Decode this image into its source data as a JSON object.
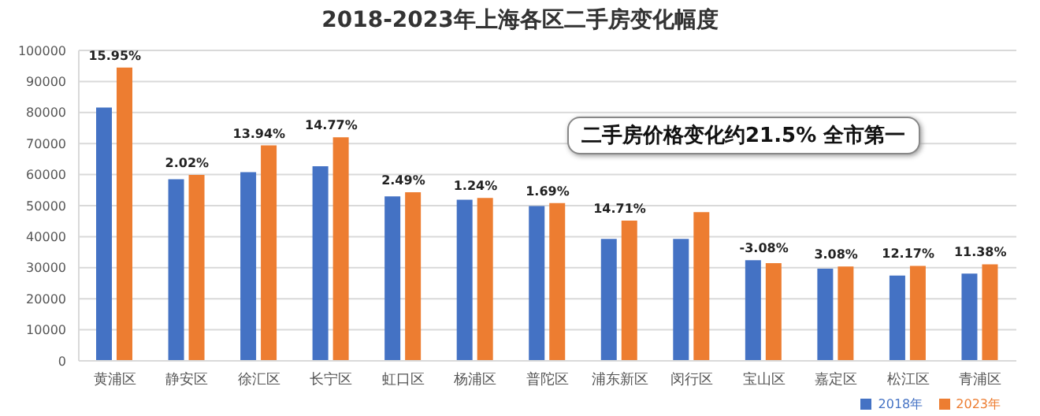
{
  "chart_data": {
    "type": "bar",
    "title": "2018-2023年上海各区二手房变化幅度",
    "categories": [
      "黄浦区",
      "静安区",
      "徐汇区",
      "长宁区",
      "虹口区",
      "杨浦区",
      "普陀区",
      "浦东新区",
      "闵行区",
      "宝山区",
      "嘉定区",
      "松江区",
      "青浦区"
    ],
    "series": [
      {
        "name": "2018年",
        "color": "#4472c4",
        "values": [
          81600,
          58500,
          60800,
          62700,
          53000,
          51900,
          49900,
          39300,
          39300,
          32400,
          29700,
          27500,
          28100
        ]
      },
      {
        "name": "2023年",
        "color": "#ed7d31",
        "values": [
          94500,
          59900,
          69400,
          72000,
          54300,
          52500,
          50800,
          45200,
          47900,
          31500,
          30400,
          30600,
          31100
        ]
      }
    ],
    "ylim": [
      0,
      100000
    ],
    "yticks": [
      0,
      10000,
      20000,
      30000,
      40000,
      50000,
      60000,
      70000,
      80000,
      90000,
      100000
    ],
    "grid": "y",
    "legend": "bottom right",
    "annotations": [
      "二手房价格变化约21.5% 全市第一",
      {
        "text": "15.95%",
        "x": "黄浦区",
        "y": 94500
      },
      {
        "text": "2.02%",
        "x": "静安区",
        "y": 59900
      },
      {
        "text": "13.94%",
        "x": "徐汇区",
        "y": 69400
      },
      {
        "text": "14.77%",
        "x": "长宁区",
        "y": 72000
      },
      {
        "text": "2.49%",
        "x": "虹口区",
        "y": 54300
      },
      {
        "text": "1.24%",
        "x": "杨浦区",
        "y": 52500
      },
      {
        "text": "1.69%",
        "x": "普陀区",
        "y": 50800
      },
      {
        "text": "14.71%",
        "x": "浦东新区",
        "y": 45200
      },
      {
        "text": "-3.08%",
        "x": "宝山区",
        "y": 32400
      },
      {
        "text": "3.08%",
        "x": "嘉定区",
        "y": 30400
      },
      {
        "text": "12.17%",
        "x": "松江区",
        "y": 30600
      },
      {
        "text": "11.38%",
        "x": "青浦区",
        "y": 31100
      }
    ]
  }
}
